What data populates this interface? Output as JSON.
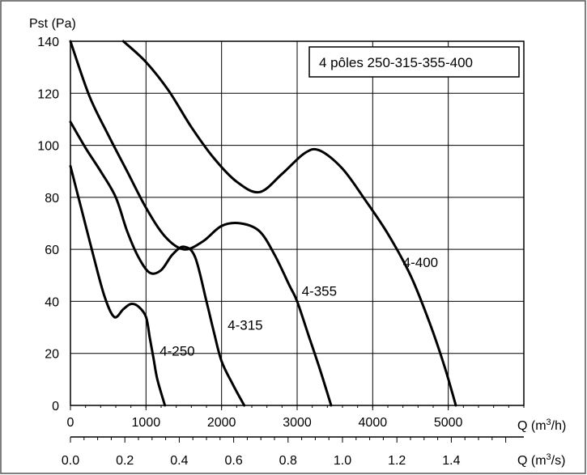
{
  "chart_data": {
    "type": "line",
    "title": "",
    "ylabel": "Pst (Pa)",
    "xlabel": "Q (m³/h)",
    "x2label": "Q (m³/s)",
    "ylim": [
      0,
      140
    ],
    "xlim": [
      0,
      6000
    ],
    "grid": true,
    "legend_box": {
      "text": "4 pôles 250-315-355-400",
      "placement": "top-right"
    },
    "x_ticks": [
      0,
      1000,
      2000,
      3000,
      4000,
      5000
    ],
    "x_tick_labels": [
      "0",
      "1000",
      "2000",
      "3000",
      "4000",
      "5000"
    ],
    "y_ticks": [
      0,
      20,
      40,
      60,
      80,
      100,
      120,
      140
    ],
    "y_tick_labels": [
      "0",
      "20",
      "40",
      "60",
      "80",
      "100",
      "120",
      "140"
    ],
    "x2_ticks": [
      0.0,
      0.2,
      0.4,
      0.6,
      0.8,
      1.0,
      1.2,
      1.4
    ],
    "x2_tick_labels": [
      "0.0",
      "0.2",
      "0.4",
      "0.6",
      "0.8",
      "1.0",
      "1.2",
      "1.4"
    ],
    "series": [
      {
        "name": "4-250",
        "x": [
          0,
          150,
          300,
          450,
          580,
          700,
          800,
          900,
          1000,
          1050,
          1100,
          1150,
          1250
        ],
        "y": [
          92,
          75,
          58,
          42,
          34,
          37,
          39,
          38,
          34,
          26,
          18,
          10,
          0
        ]
      },
      {
        "name": "4-315",
        "x": [
          0,
          200,
          400,
          600,
          750,
          900,
          1050,
          1200,
          1350,
          1500,
          1650,
          1800,
          1900,
          2000,
          2150,
          2300
        ],
        "y": [
          109,
          99,
          90,
          80,
          67,
          57,
          51,
          52,
          58,
          61,
          57,
          40,
          28,
          17,
          8,
          0
        ]
      },
      {
        "name": "4-355",
        "x": [
          0,
          250,
          500,
          750,
          1000,
          1250,
          1500,
          1750,
          2000,
          2250,
          2500,
          2700,
          2900,
          3000,
          3150,
          3300,
          3450
        ],
        "y": [
          140,
          119,
          104,
          90,
          76,
          65,
          60,
          63,
          69,
          70,
          67,
          58,
          46,
          40,
          27,
          14,
          0
        ]
      },
      {
        "name": "4-400",
        "x": [
          700,
          1000,
          1300,
          1600,
          1900,
          2200,
          2500,
          2800,
          3100,
          3300,
          3600,
          3900,
          4200,
          4500,
          4750,
          4950,
          5100
        ],
        "y": [
          140,
          132,
          121,
          107,
          95,
          86,
          82,
          89,
          97,
          98,
          91,
          79,
          66,
          50,
          32,
          15,
          0
        ]
      }
    ],
    "series_label_positions": [
      {
        "name": "4-250",
        "x": 1180,
        "y": 21
      },
      {
        "name": "4-315",
        "x": 2080,
        "y": 31
      },
      {
        "name": "4-355",
        "x": 3060,
        "y": 44
      },
      {
        "name": "4-400",
        "x": 4400,
        "y": 55
      }
    ]
  }
}
